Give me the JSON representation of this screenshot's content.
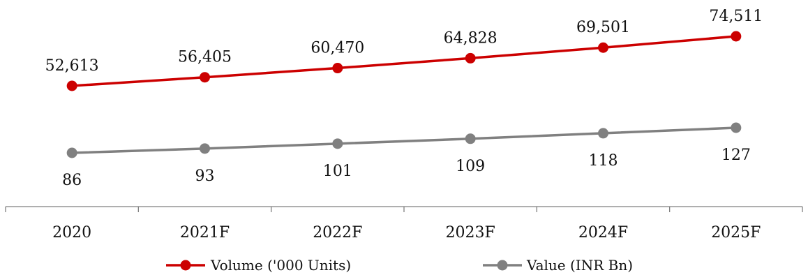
{
  "chart_data": {
    "type": "line",
    "categories": [
      "2020",
      "2021F",
      "2022F",
      "2023F",
      "2024F",
      "2025F"
    ],
    "series": [
      {
        "name": "Volume ('000 Units)",
        "values": [
          52613,
          56405,
          60470,
          64828,
          69501,
          74511
        ],
        "labels": [
          "52,613",
          "56,405",
          "60,470",
          "64,828",
          "69,501",
          "74,511"
        ],
        "color": "#cc0000",
        "label_position": "above"
      },
      {
        "name": "Value (INR Bn)",
        "values": [
          86,
          93,
          101,
          109,
          118,
          127
        ],
        "labels": [
          "86",
          "93",
          "101",
          "109",
          "118",
          "127"
        ],
        "color": "#808080",
        "label_position": "below"
      }
    ],
    "legend_position": "bottom",
    "grid": false,
    "title": "",
    "xlabel": "",
    "ylabel": ""
  }
}
